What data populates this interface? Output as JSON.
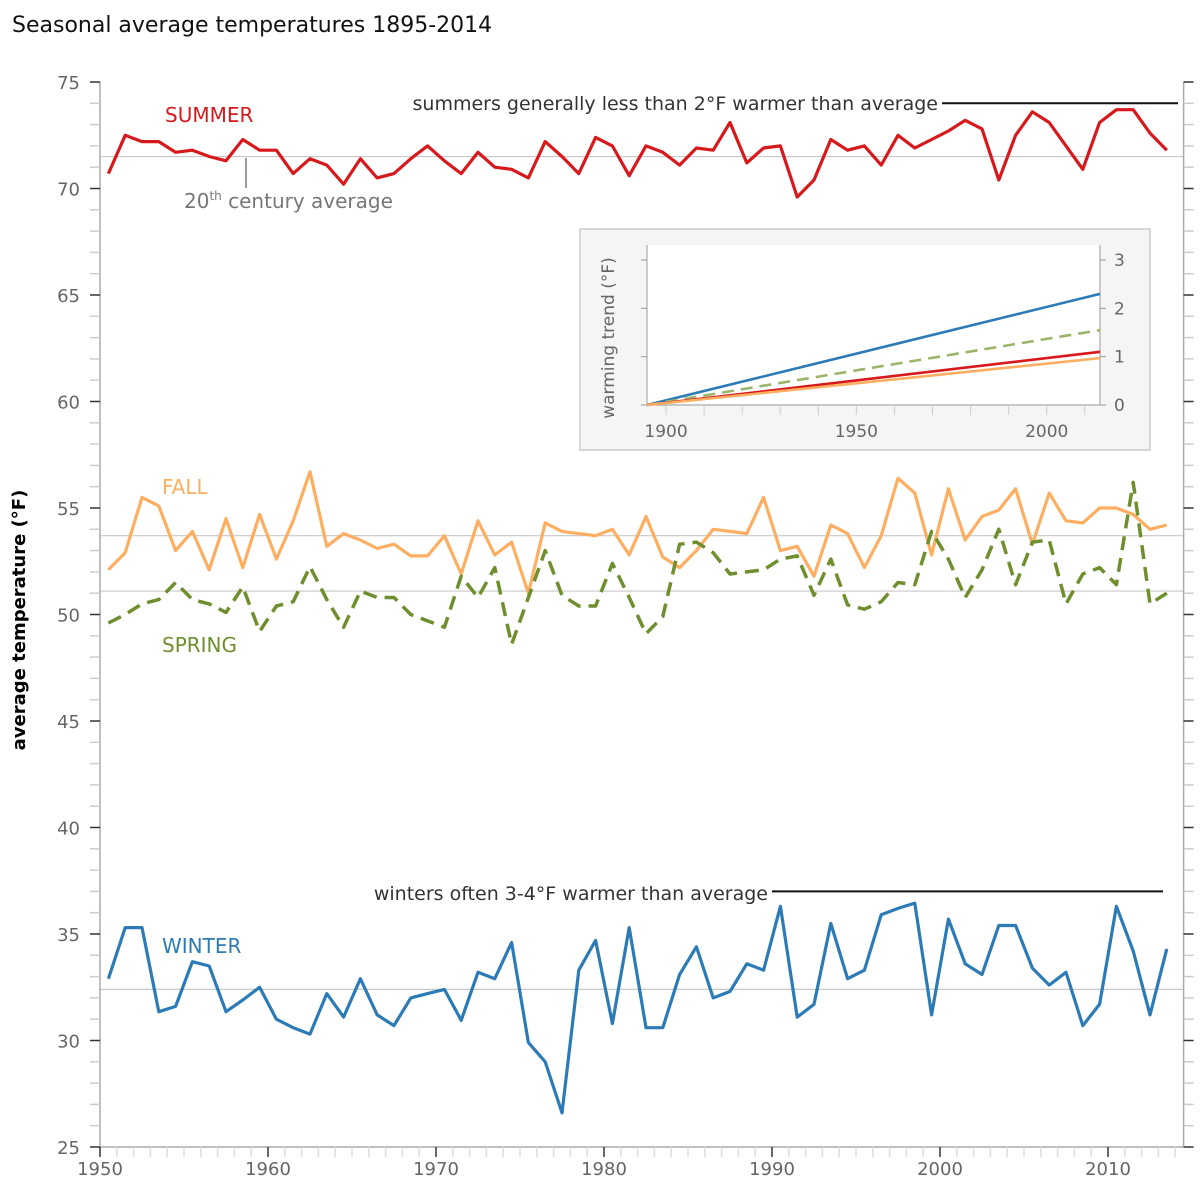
{
  "title": "Seasonal average temperatures 1895-2014",
  "chart_data": {
    "type": "line",
    "title": "Seasonal average temperatures 1895-2014",
    "ylabel": "average temperature (°F)",
    "xlabel": "",
    "xlim": [
      1950,
      2014.5
    ],
    "ylim": [
      25,
      75
    ],
    "xticks": [
      "1950",
      "1960",
      "1970",
      "1980",
      "1990",
      "2000",
      "2010"
    ],
    "yticks": [
      "25",
      "30",
      "35",
      "40",
      "45",
      "50",
      "55",
      "60",
      "65",
      "70",
      "75"
    ],
    "grid": false,
    "x": [
      1951,
      1952,
      1953,
      1954,
      1955,
      1956,
      1957,
      1958,
      1959,
      1960,
      1961,
      1962,
      1963,
      1964,
      1965,
      1966,
      1967,
      1968,
      1969,
      1970,
      1971,
      1972,
      1973,
      1974,
      1975,
      1976,
      1977,
      1978,
      1979,
      1980,
      1981,
      1982,
      1983,
      1984,
      1985,
      1986,
      1987,
      1988,
      1989,
      1990,
      1991,
      1992,
      1993,
      1994,
      1995,
      1996,
      1997,
      1998,
      1999,
      2000,
      2001,
      2002,
      2003,
      2004,
      2005,
      2006,
      2007,
      2008,
      2009,
      2010,
      2011,
      2012,
      2013,
      2014
    ],
    "series": [
      {
        "name": "SUMMER",
        "color": "#d7191c",
        "dashed": false,
        "average": 71.5,
        "values": [
          70.7,
          72.5,
          72.2,
          72.2,
          71.7,
          71.8,
          71.5,
          71.3,
          72.3,
          71.8,
          71.8,
          70.7,
          71.4,
          71.1,
          70.2,
          71.4,
          70.5,
          70.7,
          71.4,
          72.0,
          71.3,
          70.7,
          71.7,
          71.0,
          70.9,
          70.5,
          72.2,
          71.5,
          70.7,
          72.4,
          72.0,
          70.6,
          72.0,
          71.7,
          71.1,
          71.9,
          71.8,
          73.1,
          71.2,
          71.9,
          72.0,
          69.6,
          70.4,
          72.3,
          71.8,
          72.0,
          71.1,
          72.5,
          71.9,
          72.3,
          72.7,
          73.2,
          72.8,
          70.4,
          72.5,
          73.6,
          73.1,
          72.0,
          70.9,
          73.1,
          73.7,
          73.7,
          72.6,
          71.8
        ]
      },
      {
        "name": "FALL",
        "color": "#fdae61",
        "dashed": false,
        "average": 53.7,
        "values": [
          52.1,
          52.9,
          55.5,
          55.1,
          53.0,
          53.9,
          52.1,
          54.5,
          52.2,
          54.7,
          52.6,
          54.4,
          56.7,
          53.2,
          53.8,
          53.5,
          53.1,
          53.3,
          52.75,
          52.75,
          53.7,
          51.9,
          54.4,
          52.8,
          53.4,
          51.0,
          54.3,
          53.9,
          53.8,
          53.7,
          54.0,
          52.8,
          54.6,
          52.7,
          52.2,
          53.0,
          54.0,
          53.9,
          53.8,
          55.5,
          53.0,
          53.2,
          51.8,
          54.2,
          53.8,
          52.2,
          53.7,
          56.4,
          55.7,
          52.8,
          55.9,
          53.5,
          54.6,
          54.9,
          55.9,
          53.3,
          55.7,
          54.4,
          54.3,
          55.0,
          55.0,
          54.7,
          54.0,
          54.2
        ]
      },
      {
        "name": "SPRING",
        "color": "#6f8f2e",
        "dashed": true,
        "average": 51.1,
        "values": [
          49.6,
          50.0,
          50.5,
          50.7,
          51.5,
          50.7,
          50.5,
          50.1,
          51.3,
          49.2,
          50.4,
          50.6,
          52.25,
          50.7,
          49.4,
          51.1,
          50.8,
          50.8,
          50.0,
          49.7,
          49.4,
          51.8,
          50.8,
          52.2,
          48.6,
          50.8,
          53.0,
          50.9,
          50.4,
          50.4,
          52.4,
          50.8,
          49.1,
          49.9,
          53.3,
          53.4,
          52.9,
          51.9,
          52.0,
          52.1,
          52.6,
          52.75,
          50.9,
          52.6,
          50.45,
          50.25,
          50.6,
          51.5,
          51.4,
          53.9,
          52.6,
          50.8,
          52.1,
          54.0,
          51.4,
          53.4,
          53.5,
          50.5,
          51.9,
          52.2,
          51.4,
          56.2,
          50.5,
          51.0
        ]
      },
      {
        "name": "WINTER",
        "color": "#2c7bb6",
        "dashed": false,
        "average": 32.4,
        "values": [
          32.9,
          35.3,
          35.3,
          31.35,
          31.6,
          33.7,
          33.5,
          31.35,
          31.9,
          32.5,
          31.0,
          30.6,
          30.3,
          32.2,
          31.1,
          32.9,
          31.2,
          30.7,
          32.0,
          32.2,
          32.4,
          30.95,
          33.2,
          32.9,
          34.6,
          29.9,
          29.0,
          26.6,
          33.3,
          34.7,
          30.8,
          35.3,
          30.6,
          30.6,
          33.1,
          34.4,
          32.0,
          32.3,
          33.6,
          33.3,
          36.3,
          31.1,
          31.7,
          35.5,
          32.9,
          33.3,
          35.9,
          36.2,
          36.45,
          31.2,
          35.7,
          33.6,
          33.1,
          35.4,
          35.4,
          33.4,
          32.6,
          33.2,
          30.7,
          31.7,
          36.3,
          34.2,
          31.2,
          34.3
        ]
      }
    ],
    "annotations": {
      "average_label_main": "20",
      "average_label_sup": "th",
      "average_label_rest": " century average",
      "summer_note": "summers generally less than 2°F warmer than average",
      "summer_note_level": 74.0,
      "winter_note": "winters often 3-4°F warmer than average",
      "winter_note_level": 37.0
    },
    "inset": {
      "type": "line",
      "ylabel": "warming trend (°F)",
      "xlim": [
        1895,
        2014
      ],
      "ylim": [
        0,
        3
      ],
      "xticks": [
        "1900",
        "1950",
        "2000"
      ],
      "yticks": [
        "0",
        "1",
        "2",
        "3"
      ],
      "background": "#f5f5f5",
      "series": [
        {
          "season": "WINTER",
          "color": "#2c7bb6",
          "dashed": false,
          "start": 0,
          "end": 2.3
        },
        {
          "season": "SPRING",
          "color": "#9bb56a",
          "dashed": true,
          "start": 0,
          "end": 1.55
        },
        {
          "season": "SUMMER",
          "color": "#d7191c",
          "dashed": false,
          "start": 0,
          "end": 1.1
        },
        {
          "season": "FALL",
          "color": "#fdae61",
          "dashed": false,
          "start": 0,
          "end": 0.97
        }
      ]
    }
  }
}
